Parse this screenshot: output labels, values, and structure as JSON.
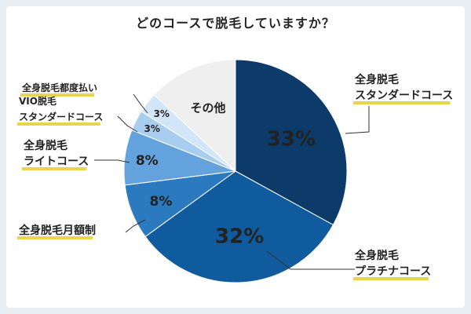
{
  "chart_data": {
    "type": "pie",
    "title": "どのコースで脱毛していますか？",
    "slices": [
      {
        "lines": [
          "全身脱毛",
          "スタンダードコース"
        ],
        "value": 33,
        "label": "33%",
        "color": "#0c3a69",
        "text_color": "#6b4a1b"
      },
      {
        "lines": [
          "全身脱毛",
          "プラチナコース"
        ],
        "value": 32,
        "label": "32%",
        "color": "#0f5b9e",
        "text_color": "#6b4a1b"
      },
      {
        "lines": [
          "全身脱毛月額制"
        ],
        "value": 8,
        "label": "8%",
        "color": "#2b79bf",
        "text_color": "#6b4a1b"
      },
      {
        "lines": [
          "全身脱毛",
          "ライトコース"
        ],
        "value": 8,
        "label": "8%",
        "color": "#64a2dd",
        "text_color": "#6b4a1b"
      },
      {
        "lines": [
          "VIO脱毛",
          "スタンダードコース"
        ],
        "value": 3,
        "label": "3%",
        "color": "#a9cdef",
        "text_color": "#6b4a1b"
      },
      {
        "lines": [
          "全身脱毛都度払い"
        ],
        "value": 3,
        "label": "3%",
        "color": "#d3e6f7",
        "text_color": "#6b4a1b"
      },
      {
        "lines": [
          "その他"
        ],
        "value": 13,
        "label": "",
        "color": "#efefef",
        "text_color": "#666666"
      }
    ],
    "highlight_color": "#e8d44d"
  }
}
